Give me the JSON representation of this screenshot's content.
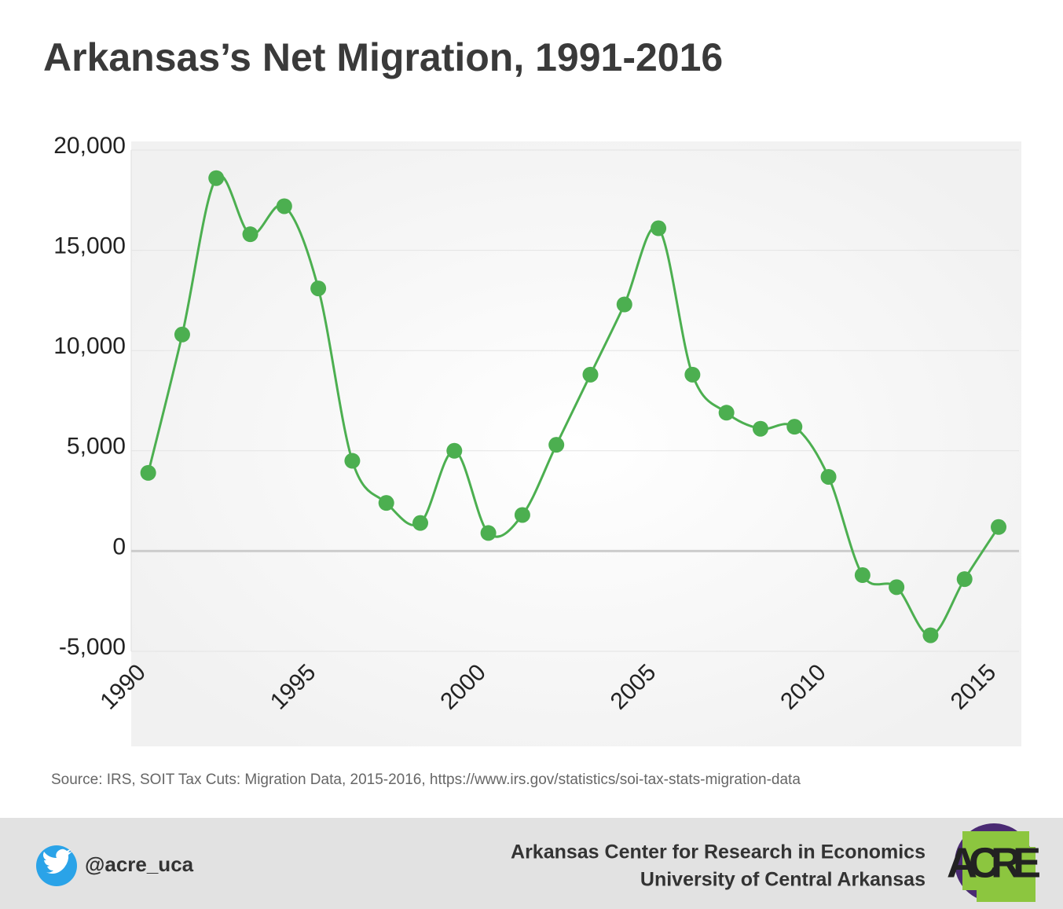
{
  "chart_data": {
    "type": "line",
    "title": "Arkansas’s Net Migration, 1991-2016",
    "x": [
      1991,
      1992,
      1993,
      1994,
      1995,
      1996,
      1997,
      1998,
      1999,
      2000,
      2001,
      2002,
      2003,
      2004,
      2005,
      2006,
      2007,
      2008,
      2009,
      2010,
      2011,
      2012,
      2013,
      2014,
      2015,
      2016
    ],
    "series": [
      {
        "name": "Net Migration",
        "color": "#4caf50",
        "values": [
          3900,
          10800,
          18600,
          15800,
          17200,
          13100,
          4500,
          2400,
          1400,
          5000,
          900,
          1800,
          5300,
          8800,
          12300,
          16100,
          8800,
          6900,
          6100,
          6200,
          3700,
          -1200,
          -1800,
          -4200,
          -1400,
          1200
        ]
      }
    ],
    "xlim": [
      1990.5,
      2016.6
    ],
    "xticks": [
      1990,
      1995,
      2000,
      2005,
      2010,
      2015
    ],
    "ylim": [
      -5000,
      20000
    ],
    "yticks": [
      {
        "value": -5000,
        "label": "-5,000"
      },
      0,
      {
        "value": 5000,
        "label": "5,000"
      },
      {
        "value": 10000,
        "label": "10,000"
      },
      {
        "value": 15000,
        "label": "15,000"
      },
      {
        "value": 20000,
        "label": "20,000"
      }
    ],
    "grid": true,
    "source": "Source: IRS, SOIT Tax Cuts: Migration Data, 2015-2016, https://www.irs.gov/statistics/soi-tax-stats-migration-data"
  },
  "footer": {
    "handle": "@acre_uca",
    "org_line1": "Arkansas Center for Research in Economics",
    "org_line2": "University of Central Arkansas",
    "logo": "ACRE"
  }
}
